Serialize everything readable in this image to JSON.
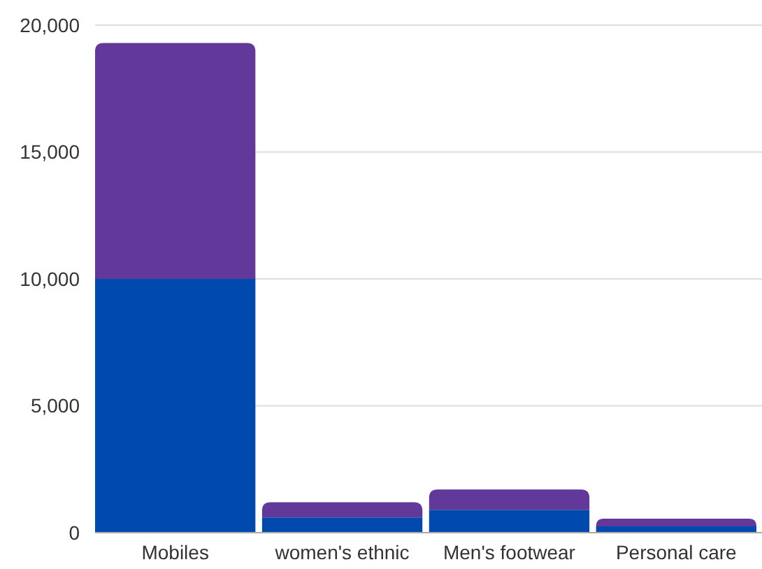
{
  "chart_data": {
    "type": "bar",
    "stacked": true,
    "categories": [
      "Mobiles",
      "women's ethnic",
      "Men's footwear",
      "Personal care"
    ],
    "series": [
      {
        "color": "#004aad",
        "values": [
          10000,
          600,
          900,
          250
        ]
      },
      {
        "color": "#62389b",
        "values": [
          9300,
          600,
          800,
          300
        ]
      }
    ],
    "ylim": [
      0,
      20000
    ],
    "yticks": [
      {
        "value": 0,
        "label": "0"
      },
      {
        "value": 5000,
        "label": "5,000"
      },
      {
        "value": 10000,
        "label": "10,000"
      },
      {
        "value": 15000,
        "label": "15,000"
      },
      {
        "value": 20000,
        "label": "20,000"
      }
    ],
    "grid": "y"
  }
}
